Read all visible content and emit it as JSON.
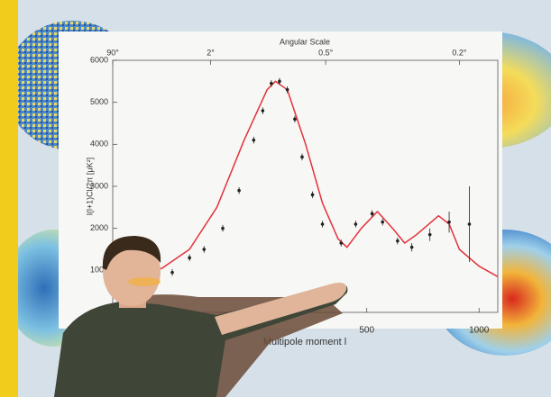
{
  "chart_data": {
    "type": "line",
    "title": "Angular Scale",
    "ylabel": "l(l+1)Cl/2π [μK²]",
    "xlabel": "Multipole moment l",
    "xscale": "sqrt",
    "xlim": [
      2,
      1100
    ],
    "ylim": [
      0,
      6000
    ],
    "xticks": [
      500,
      1000
    ],
    "yticks": [
      1000,
      2000,
      3000,
      4000,
      5000,
      6000
    ],
    "x2ticks": [
      {
        "value": 2,
        "label": "90°"
      },
      {
        "value": 90,
        "label": "2°"
      },
      {
        "value": 360,
        "label": "0.5°"
      },
      {
        "value": 900,
        "label": "0.2°"
      }
    ],
    "series": [
      {
        "color": "#e3323c",
        "x": [
          2,
          10,
          30,
          60,
          100,
          150,
          200,
          220,
          250,
          300,
          350,
          400,
          430,
          480,
          540,
          600,
          650,
          700,
          800,
          850,
          900,
          1000,
          1100
        ],
        "values": [
          800,
          850,
          1050,
          1500,
          2500,
          4100,
          5300,
          5500,
          5300,
          4000,
          2600,
          1750,
          1550,
          2000,
          2400,
          2000,
          1650,
          1850,
          2300,
          2100,
          1500,
          1100,
          850
        ]
      },
      {
        "color": "#222222",
        "x": [
          40,
          60,
          80,
          110,
          140,
          170,
          190,
          210,
          230,
          250,
          270,
          290,
          320,
          350,
          410,
          460,
          520,
          560,
          620,
          680,
          760,
          850,
          950
        ],
        "values": [
          950,
          1300,
          1500,
          2000,
          2900,
          4100,
          4800,
          5450,
          5500,
          5300,
          4600,
          3700,
          2800,
          2100,
          1650,
          2100,
          2350,
          2150,
          1700,
          1550,
          1850,
          2150,
          2100
        ],
        "errors": [
          80,
          80,
          80,
          80,
          80,
          80,
          80,
          80,
          80,
          80,
          80,
          80,
          80,
          80,
          80,
          80,
          80,
          80,
          80,
          100,
          150,
          250,
          900
        ]
      }
    ]
  }
}
